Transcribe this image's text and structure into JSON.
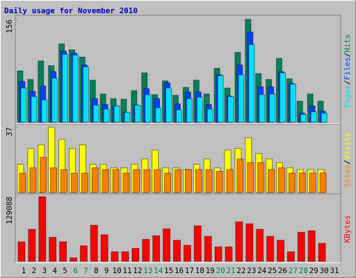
{
  "chart_data": {
    "type": "bar",
    "title": "Daily usage for November 2010",
    "legend_separator": "/",
    "categories": [
      "1",
      "2",
      "3",
      "4",
      "5",
      "6",
      "7",
      "8",
      "9",
      "10",
      "11",
      "12",
      "13",
      "14",
      "15",
      "16",
      "17",
      "18",
      "19",
      "20",
      "21",
      "22",
      "23",
      "24",
      "25",
      "26",
      "27",
      "28",
      "29",
      "30",
      "31"
    ],
    "category_colors": [
      "#000000",
      "#000000",
      "#000000",
      "#000000",
      "#000000",
      "#00805c",
      "#00805c",
      "#000000",
      "#000000",
      "#000000",
      "#000000",
      "#000000",
      "#00805c",
      "#00805c",
      "#000000",
      "#000000",
      "#000000",
      "#000000",
      "#000000",
      "#00805c",
      "#00805c",
      "#000000",
      "#000000",
      "#000000",
      "#000000",
      "#000000",
      "#00805c",
      "#00805c",
      "#000000",
      "#000000",
      "#000000"
    ],
    "panels": [
      {
        "ylim": [
          0,
          156
        ],
        "yticks": [
          156
        ],
        "series": [
          {
            "name": "Hits",
            "color": "#00805c",
            "values": [
              78,
              65,
              93,
              86,
              119,
              110,
              99,
              64,
              43,
              36,
              35,
              48,
              75,
              42,
              63,
              41,
              53,
              64,
              43,
              82,
              52,
              106,
              156,
              74,
              65,
              97,
              66,
              32,
              43,
              32,
              0
            ]
          },
          {
            "name": "Files",
            "color": "#0040ff",
            "values": [
              62,
              47,
              55,
              77,
              108,
              105,
              87,
              36,
              27,
              25,
              15,
              26,
              51,
              36,
              60,
              28,
              46,
              46,
              27,
              72,
              40,
              87,
              137,
              54,
              54,
              77,
              59,
              14,
              25,
              17,
              0
            ]
          },
          {
            "name": "Pages",
            "color": "#00e0ff",
            "values": [
              52,
              39,
              34,
              67,
              103,
              102,
              84,
              26,
              20,
              25,
              15,
              26,
              42,
              22,
              52,
              19,
              36,
              38,
              20,
              71,
              39,
              72,
              118,
              42,
              43,
              75,
              58,
              12,
              16,
              14,
              0
            ]
          }
        ]
      },
      {
        "ylim": [
          0,
          37
        ],
        "yticks": [
          37
        ],
        "series": [
          {
            "name": "Visits",
            "color": "#ffff00",
            "values": [
              16,
              25,
              27,
              37,
              30,
              25,
              27,
              16,
              16,
              14,
              14,
              16,
              19,
              24,
              14,
              14,
              13,
              16,
              19,
              14,
              24,
              25,
              31,
              22,
              19,
              17,
              14,
              13,
              13,
              13,
              0
            ]
          },
          {
            "name": "Sites",
            "color": "#ff8000",
            "values": [
              11,
              14,
              20,
              14,
              13,
              11,
              11,
              14,
              13,
              13,
              11,
              13,
              13,
              13,
              11,
              13,
              13,
              13,
              13,
              12,
              13,
              19,
              17,
              17,
              13,
              14,
              11,
              11,
              11,
              11,
              0
            ]
          }
        ]
      },
      {
        "ylim": [
          0,
          129088
        ],
        "yticks": [
          129088
        ],
        "series": [
          {
            "name": "KBytes",
            "color": "#ff0000",
            "values": [
              39000,
              64000,
              129088,
              48000,
              39000,
              7000,
              31000,
              72000,
              53000,
              19000,
              19000,
              26000,
              44000,
              51000,
              65000,
              42000,
              32000,
              71000,
              50000,
              29000,
              29000,
              79000,
              75000,
              64000,
              50000,
              42000,
              19000,
              58000,
              61000,
              36000,
              0
            ]
          }
        ]
      }
    ]
  }
}
